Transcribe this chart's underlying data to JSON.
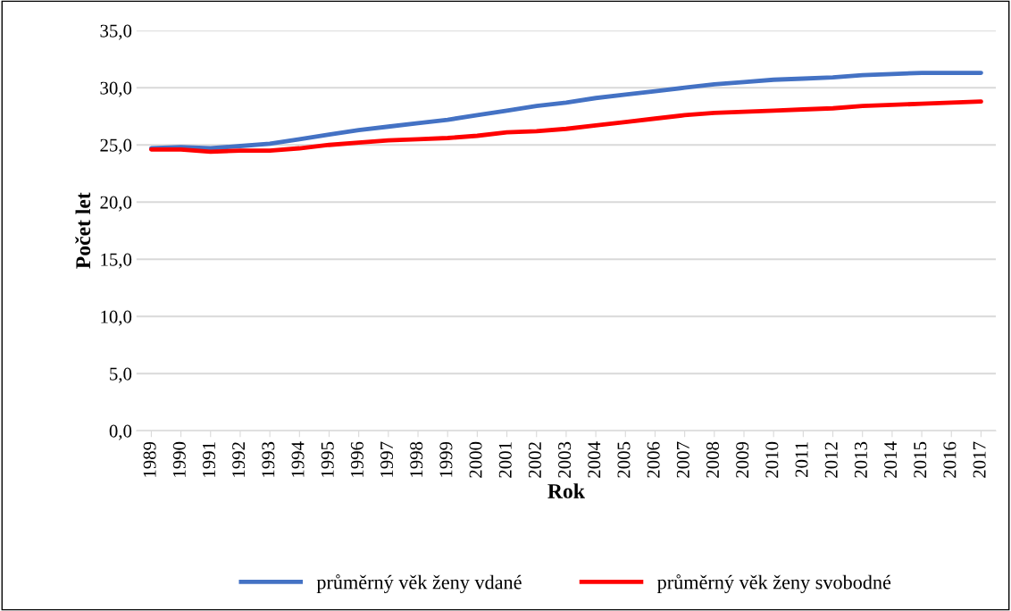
{
  "chart_data": {
    "type": "line",
    "xlabel": "Rok",
    "ylabel": "Počet let",
    "categories": [
      "1989",
      "1990",
      "1991",
      "1992",
      "1993",
      "1994",
      "1995",
      "1996",
      "1997",
      "1998",
      "1999",
      "2000",
      "2001",
      "2002",
      "2003",
      "2004",
      "2005",
      "2006",
      "2007",
      "2008",
      "2009",
      "2010",
      "2011",
      "2012",
      "2013",
      "2014",
      "2015",
      "2016",
      "2017"
    ],
    "series": [
      {
        "name": "průměrný věk ženy vdané",
        "color": "#4472c4",
        "values": [
          24.7,
          24.8,
          24.7,
          24.9,
          25.1,
          25.5,
          25.9,
          26.3,
          26.6,
          26.9,
          27.2,
          27.6,
          28.0,
          28.4,
          28.7,
          29.1,
          29.4,
          29.7,
          30.0,
          30.3,
          30.5,
          30.7,
          30.8,
          30.9,
          31.1,
          31.2,
          31.3,
          31.3,
          31.3
        ]
      },
      {
        "name": "průměrný věk ženy svobodné",
        "color": "#ff0000",
        "values": [
          24.6,
          24.6,
          24.4,
          24.5,
          24.5,
          24.7,
          25.0,
          25.2,
          25.4,
          25.5,
          25.6,
          25.8,
          26.1,
          26.2,
          26.4,
          26.7,
          27.0,
          27.3,
          27.6,
          27.8,
          27.9,
          28.0,
          28.1,
          28.2,
          28.4,
          28.5,
          28.6,
          28.7,
          28.8
        ]
      }
    ],
    "ylim": [
      0,
      35
    ],
    "yticks": [
      {
        "value": 0,
        "label": "0,0"
      },
      {
        "value": 5,
        "label": "5,0"
      },
      {
        "value": 10,
        "label": "10,0"
      },
      {
        "value": 15,
        "label": "15,0"
      },
      {
        "value": 20,
        "label": "20,0"
      },
      {
        "value": 25,
        "label": "25,0"
      },
      {
        "value": 30,
        "label": "30,0"
      },
      {
        "value": 35,
        "label": "35,0"
      }
    ],
    "grid": "y",
    "legend": "bottom",
    "marker": "none",
    "line_style": "solid"
  }
}
